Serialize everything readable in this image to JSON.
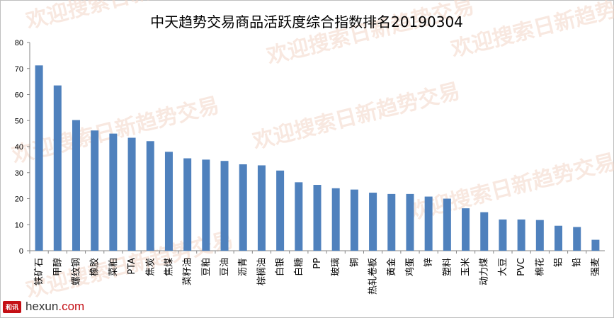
{
  "chart_data": {
    "type": "bar",
    "title": "中天趋势交易商品活跃度综合指数排名20190304",
    "ylim": [
      0,
      80
    ],
    "yticks": [
      0,
      10,
      20,
      30,
      40,
      50,
      60,
      70,
      80
    ],
    "grid": false,
    "legend": "none",
    "bar_color": "#4f81bd",
    "categories": [
      "铁矿石",
      "甲醇",
      "螺纹钢",
      "橡胶",
      "菜粕",
      "PTA",
      "焦炭",
      "焦煤",
      "菜籽油",
      "豆粕",
      "豆油",
      "沥青",
      "棕榈油",
      "白银",
      "白糖",
      "PP",
      "玻璃",
      "铜",
      "热轧卷板",
      "黄金",
      "鸡蛋",
      "锌",
      "塑料",
      "玉米",
      "动力煤",
      "大豆",
      "PVC",
      "棉花",
      "铝",
      "铅",
      "强麦"
    ],
    "values": [
      71.2,
      63.5,
      50.2,
      46.2,
      45.0,
      43.4,
      42.1,
      38.0,
      35.5,
      35.0,
      34.5,
      33.2,
      32.8,
      30.8,
      26.3,
      25.3,
      24.0,
      23.5,
      22.3,
      21.8,
      21.8,
      20.8,
      20.0,
      16.3,
      14.8,
      12.0,
      12.0,
      11.8,
      9.6,
      9.1,
      4.2
    ]
  },
  "watermark": {
    "text": "欢迎搜索日新趋势交易",
    "color": "#f3d6c8"
  },
  "logo": {
    "badge": "和讯",
    "brand": "hexun",
    "domain": ".com"
  }
}
